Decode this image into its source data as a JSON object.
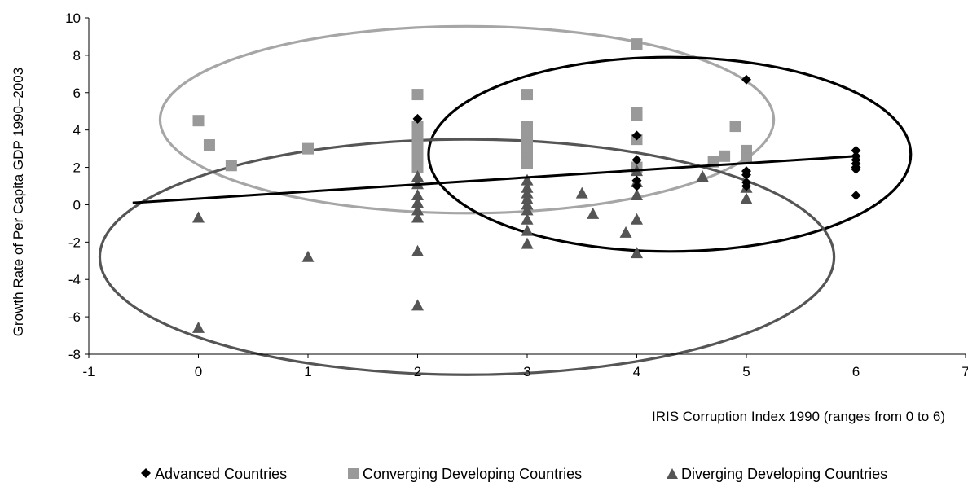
{
  "chart_data": {
    "type": "scatter",
    "title": "",
    "xlabel": "IRIS Corruption Index 1990 (ranges from 0 to 6)",
    "ylabel": "Growth Rate of Per Capita GDP 1990–2003",
    "xlim": [
      -1,
      7
    ],
    "ylim": [
      -8,
      10
    ],
    "x_ticks": [
      -1,
      0,
      1,
      2,
      3,
      4,
      5,
      6,
      7
    ],
    "y_ticks": [
      -8,
      -6,
      -4,
      -2,
      0,
      2,
      4,
      6,
      8,
      10
    ],
    "grid": false,
    "legend_position": "bottom",
    "series": [
      {
        "name": "Advanced Countries",
        "marker": "diamond",
        "color": "#000000",
        "points": [
          [
            2,
            4.6
          ],
          [
            4,
            3.7
          ],
          [
            4,
            2.4
          ],
          [
            4,
            1.3
          ],
          [
            4,
            1.0
          ],
          [
            5,
            6.7
          ],
          [
            5,
            1.8
          ],
          [
            5,
            1.6
          ],
          [
            5,
            1.2
          ],
          [
            5,
            1.0
          ],
          [
            6,
            2.9
          ],
          [
            6,
            2.6
          ],
          [
            6,
            2.4
          ],
          [
            6,
            2.2
          ],
          [
            6,
            2.0
          ],
          [
            6,
            1.9
          ],
          [
            6,
            0.5
          ]
        ]
      },
      {
        "name": "Converging Developing Countries",
        "marker": "square",
        "color": "#999999",
        "points": [
          [
            0,
            4.5
          ],
          [
            0.1,
            3.2
          ],
          [
            0.3,
            2.1
          ],
          [
            1,
            3.0
          ],
          [
            2,
            5.9
          ],
          [
            2,
            4.2
          ],
          [
            2,
            3.6
          ],
          [
            2,
            3.2
          ],
          [
            2,
            2.6
          ],
          [
            2,
            2.3
          ],
          [
            2,
            2.0
          ],
          [
            3,
            5.9
          ],
          [
            3,
            4.2
          ],
          [
            3,
            3.8
          ],
          [
            3,
            3.3
          ],
          [
            3,
            3.0
          ],
          [
            3,
            2.6
          ],
          [
            3,
            2.2
          ],
          [
            4,
            8.6
          ],
          [
            4,
            4.9
          ],
          [
            4,
            4.8
          ],
          [
            4,
            3.5
          ],
          [
            4,
            2.0
          ],
          [
            4.7,
            2.3
          ],
          [
            4.8,
            2.6
          ],
          [
            4.9,
            4.2
          ],
          [
            5,
            2.9
          ],
          [
            5,
            2.5
          ]
        ]
      },
      {
        "name": "Diverging Developing Countries",
        "marker": "triangle",
        "color": "#555555",
        "points": [
          [
            0,
            -0.7
          ],
          [
            0,
            -6.6
          ],
          [
            1,
            -2.8
          ],
          [
            2,
            1.5
          ],
          [
            2,
            1.1
          ],
          [
            2,
            0.5
          ],
          [
            2,
            0.1
          ],
          [
            2,
            -0.3
          ],
          [
            2,
            -0.7
          ],
          [
            2,
            -2.5
          ],
          [
            2,
            -5.4
          ],
          [
            3,
            1.3
          ],
          [
            3,
            0.9
          ],
          [
            3,
            0.6
          ],
          [
            3,
            0.3
          ],
          [
            3,
            0.0
          ],
          [
            3,
            -0.3
          ],
          [
            3,
            -0.8
          ],
          [
            3,
            -1.4
          ],
          [
            3,
            -2.1
          ],
          [
            3.5,
            0.6
          ],
          [
            3.6,
            -0.5
          ],
          [
            3.9,
            -1.5
          ],
          [
            4,
            1.8
          ],
          [
            4,
            1.2
          ],
          [
            4,
            0.5
          ],
          [
            4,
            -0.8
          ],
          [
            4,
            -2.6
          ],
          [
            4.6,
            1.5
          ],
          [
            5,
            0.9
          ],
          [
            5,
            0.3
          ]
        ]
      }
    ],
    "trendline": {
      "color": "#000000",
      "from": [
        -0.6,
        0.1
      ],
      "to": [
        6,
        2.6
      ]
    },
    "ellipses": [
      {
        "color": "#a6a6a6",
        "center": [
          2.45,
          4.55
        ],
        "radii": [
          2.8,
          5.0
        ]
      },
      {
        "color": "#000000",
        "center": [
          4.3,
          2.7
        ],
        "radii": [
          2.2,
          5.2
        ]
      },
      {
        "color": "#555555",
        "center": [
          2.45,
          -2.8
        ],
        "radii": [
          3.35,
          6.3
        ]
      }
    ]
  }
}
